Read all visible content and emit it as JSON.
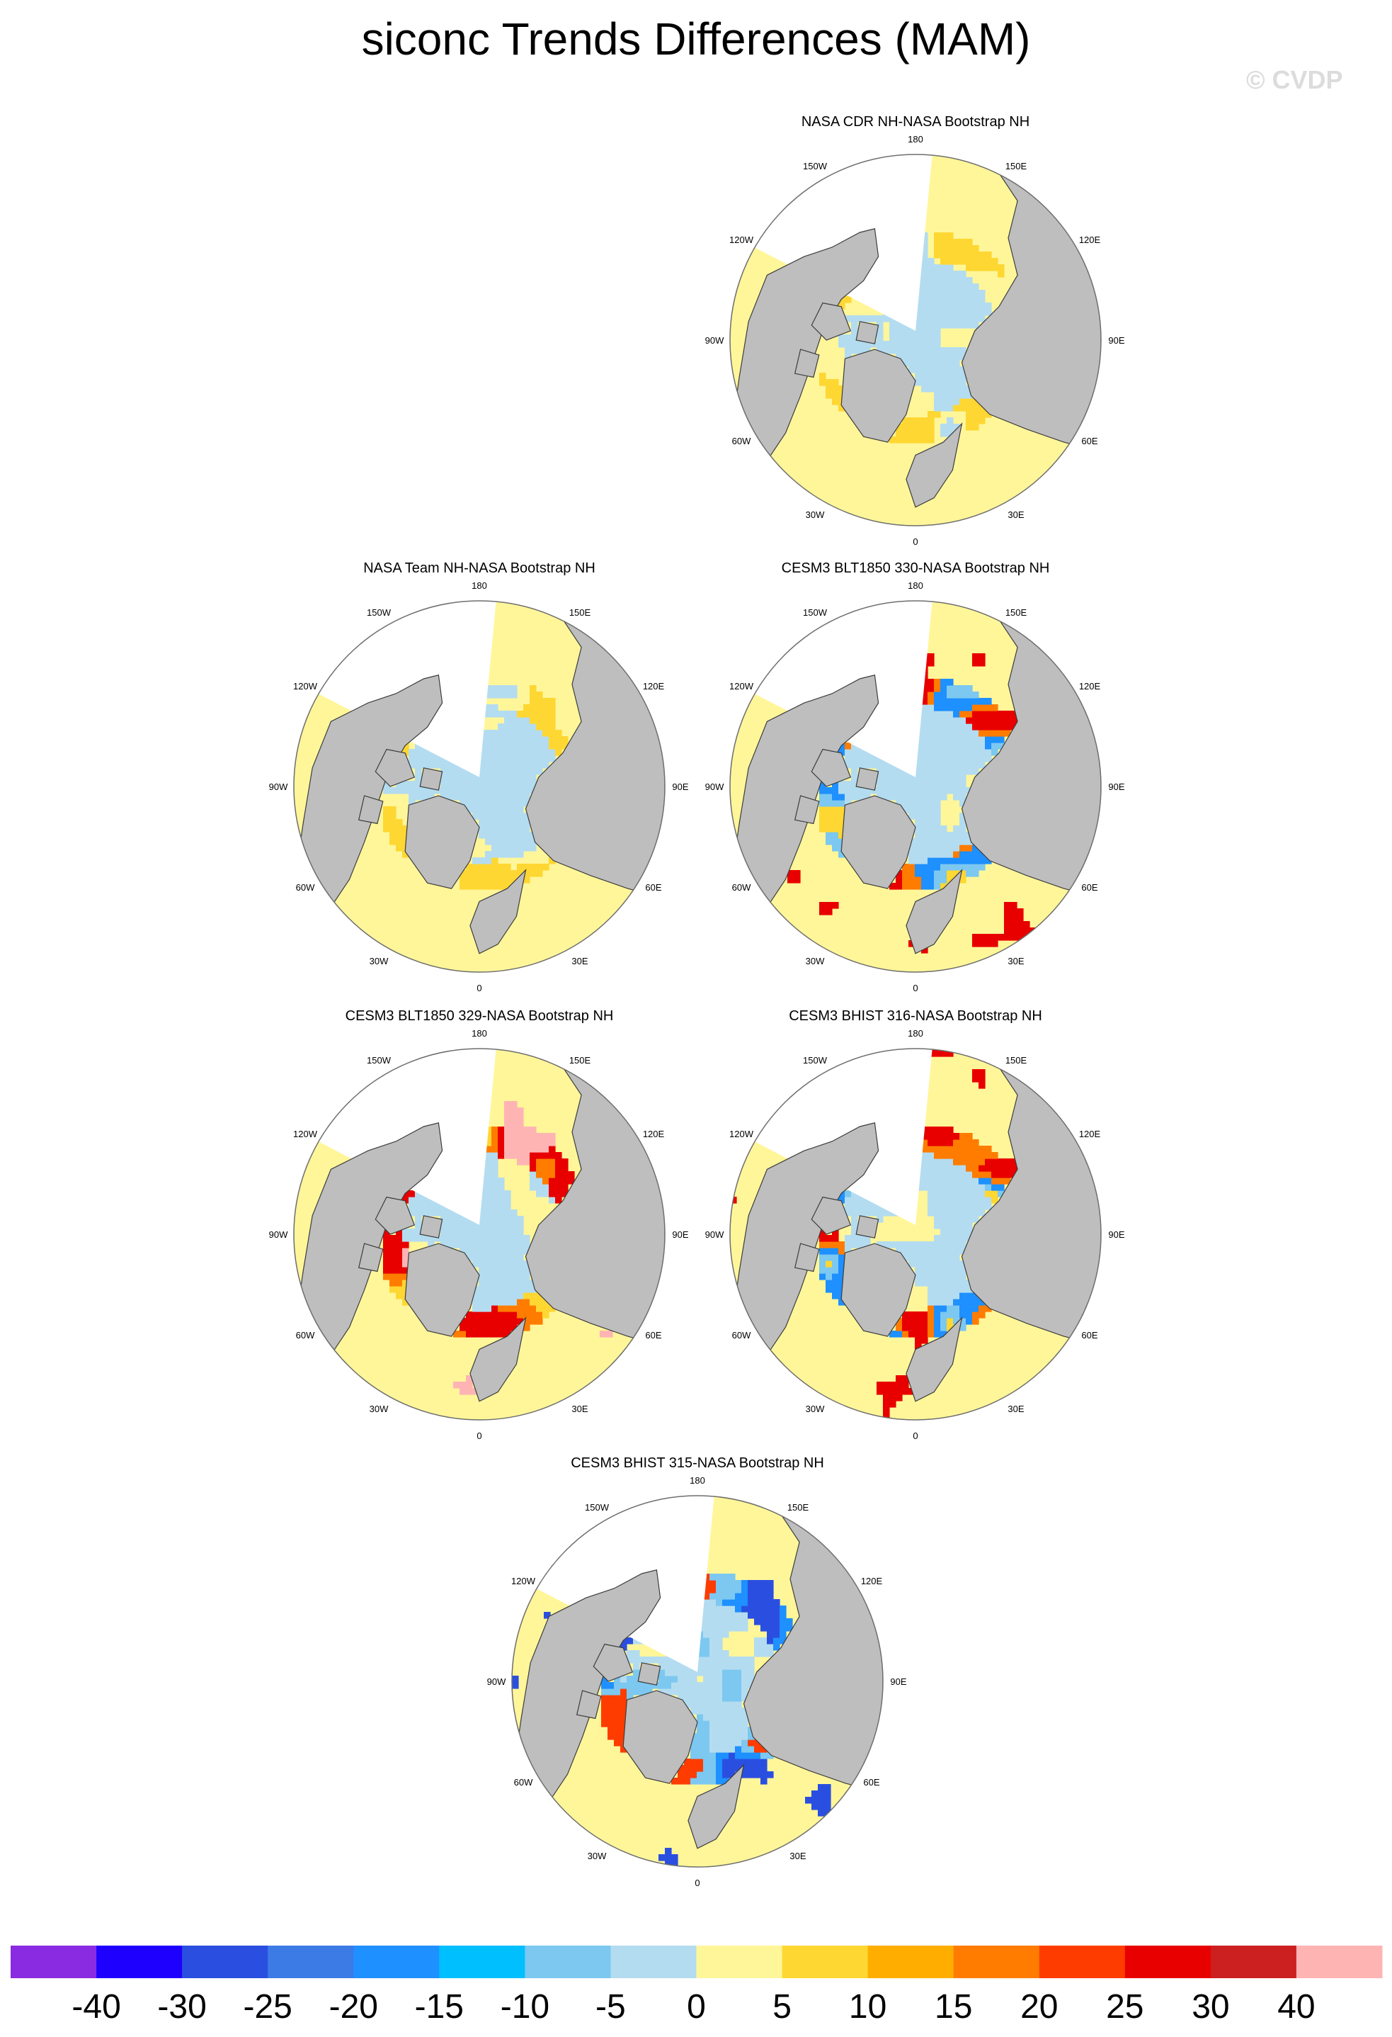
{
  "page": {
    "title": "siconc Trends Differences (MAM)",
    "watermark": "© CVDP"
  },
  "chart_data": {
    "type": "heatmap",
    "projection": "north polar stereographic",
    "season": "MAM",
    "variable": "siconc",
    "longitude_labels": [
      "180",
      "150E",
      "120E",
      "90E",
      "60E",
      "30E",
      "0",
      "30W",
      "60W",
      "90W",
      "120W",
      "150W"
    ],
    "panels": [
      {
        "title": "NASA CDR NH-NASA Bootstrap NH",
        "pattern": "weak"
      },
      {
        "title": "NASA Team NH-NASA Bootstrap NH",
        "pattern": "weak"
      },
      {
        "title": "CESM3 BLT1850 330-NASA Bootstrap NH",
        "pattern": "mixed"
      },
      {
        "title": "CESM3 BLT1850 329-NASA Bootstrap NH",
        "pattern": "positive"
      },
      {
        "title": "CESM3 BHIST 316-NASA Bootstrap NH",
        "pattern": "mixed"
      },
      {
        "title": "CESM3 BHIST 315-NASA Bootstrap NH",
        "pattern": "negative"
      }
    ],
    "colorbar": {
      "labels": [
        "-40",
        "-30",
        "-25",
        "-20",
        "-15",
        "-10",
        "-5",
        "0",
        "5",
        "10",
        "15",
        "20",
        "25",
        "30",
        "40"
      ],
      "colors": [
        "#8a2be2",
        "#1e00ff",
        "#2a4fe0",
        "#3c7ae6",
        "#1e90ff",
        "#00bfff",
        "#7cc8f0",
        "#b4dcf0",
        "#fff69a",
        "#ffd732",
        "#ffae00",
        "#ff7c00",
        "#ff3c00",
        "#e80000",
        "#cc2020",
        "#ffb4b4"
      ]
    },
    "map_colors": {
      "land": "#bebebe",
      "coast": "#3c3c3c",
      "outside_domain": "#ffffff"
    }
  }
}
